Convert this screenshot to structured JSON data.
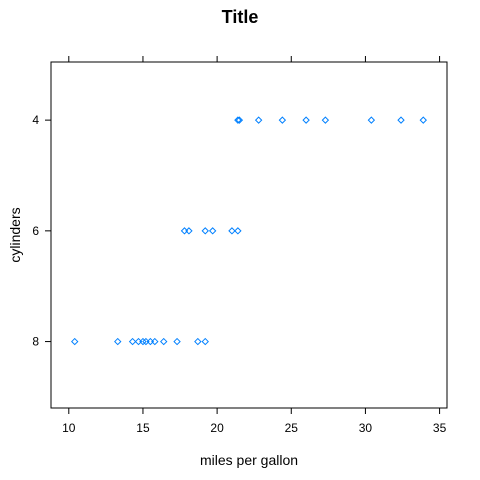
{
  "chart_data": {
    "type": "scatter",
    "title": "Title",
    "xlabel": "miles per gallon",
    "ylabel": "cylinders",
    "xlim": [
      8.8,
      35.5
    ],
    "ylim": [
      2.95,
      9.2
    ],
    "y_reversed": true,
    "x_ticks": [
      10,
      15,
      20,
      25,
      30,
      35
    ],
    "y_ticks": [
      4,
      6,
      8
    ],
    "grid": false,
    "legend": "none",
    "marker": "open-diamond",
    "colors": {
      "points": "#0080ff",
      "axis": "#000000"
    },
    "points": [
      {
        "x": 21.4,
        "y": 4
      },
      {
        "x": 21.5,
        "y": 4
      },
      {
        "x": 22.8,
        "y": 4
      },
      {
        "x": 24.4,
        "y": 4
      },
      {
        "x": 26.0,
        "y": 4
      },
      {
        "x": 27.3,
        "y": 4
      },
      {
        "x": 30.4,
        "y": 4
      },
      {
        "x": 32.4,
        "y": 4
      },
      {
        "x": 33.9,
        "y": 4
      },
      {
        "x": 17.8,
        "y": 6
      },
      {
        "x": 18.1,
        "y": 6
      },
      {
        "x": 19.2,
        "y": 6
      },
      {
        "x": 19.7,
        "y": 6
      },
      {
        "x": 21.0,
        "y": 6
      },
      {
        "x": 21.4,
        "y": 6
      },
      {
        "x": 10.4,
        "y": 8
      },
      {
        "x": 13.3,
        "y": 8
      },
      {
        "x": 14.3,
        "y": 8
      },
      {
        "x": 14.7,
        "y": 8
      },
      {
        "x": 15.0,
        "y": 8
      },
      {
        "x": 15.2,
        "y": 8
      },
      {
        "x": 15.5,
        "y": 8
      },
      {
        "x": 15.8,
        "y": 8
      },
      {
        "x": 16.4,
        "y": 8
      },
      {
        "x": 17.3,
        "y": 8
      },
      {
        "x": 18.7,
        "y": 8
      },
      {
        "x": 19.2,
        "y": 8
      }
    ]
  }
}
